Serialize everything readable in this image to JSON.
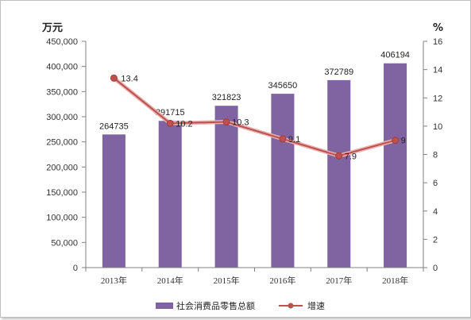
{
  "chart_data": {
    "type": "bar",
    "categories": [
      "2013年",
      "2014年",
      "2015年",
      "2016年",
      "2017年",
      "2018年"
    ],
    "series": [
      {
        "name": "社会消费品零售总额",
        "type": "bar",
        "axis": "left",
        "values": [
          264735,
          291715,
          321823,
          345650,
          372789,
          406194
        ],
        "labels": [
          "264735",
          "291715",
          "321823",
          "345650",
          "372789",
          "406194"
        ],
        "color": "#8064a2"
      },
      {
        "name": "增速",
        "type": "line",
        "axis": "right",
        "values": [
          13.4,
          10.2,
          10.3,
          9.1,
          7.9,
          9
        ],
        "labels": [
          "13.4",
          "10.2",
          "10.3",
          "9.1",
          "7.9",
          "9"
        ],
        "color": "#c0504d"
      }
    ],
    "y_left": {
      "unit": "万元",
      "range": [
        0,
        450000
      ],
      "ticks": [
        "0",
        "50,000",
        "100,000",
        "150,000",
        "200,000",
        "250,000",
        "300,000",
        "350,000",
        "400,000",
        "450,000"
      ]
    },
    "y_right": {
      "unit": "%",
      "range": [
        0,
        16
      ],
      "ticks": [
        "0",
        "2",
        "4",
        "6",
        "8",
        "10",
        "12",
        "14",
        "16"
      ]
    },
    "grid": false,
    "legend": "bottom"
  }
}
